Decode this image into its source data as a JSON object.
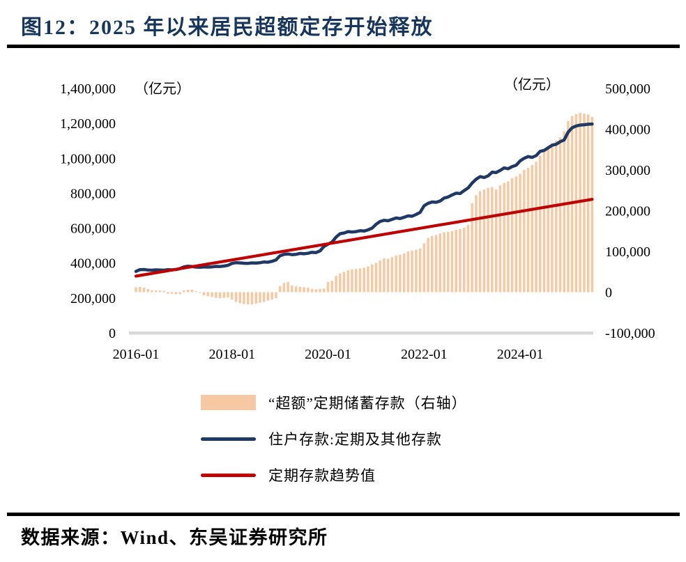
{
  "title": "图12：2025 年以来居民超额定存开始释放",
  "footer": {
    "source_text": "数据来源：Wind、东吴证券研究所"
  },
  "colors": {
    "title": "#17365D",
    "bar": "#F6C9A2",
    "deposit_line": "#1F3864",
    "trend_line": "#C00000",
    "axis_line": "#D9D9D9",
    "rule": "#000000"
  },
  "legend": {
    "items": [
      {
        "label": "“超额”定期储蓄存款（右轴）",
        "swatch": "bar"
      },
      {
        "label": "住户存款:定期及其他存款",
        "swatch": "line-navy"
      },
      {
        "label": "定期存款趋势值",
        "swatch": "line-red"
      }
    ]
  },
  "chart_data": {
    "type": "combo-bar-line",
    "title": "图12：2025 年以来居民超额定存开始释放",
    "frequency": "monthly",
    "x_start": "2016-01",
    "x_end": "2025-07",
    "unit_left": "（亿元）",
    "unit_right": "（亿元）",
    "grid": "off",
    "legend_position": "bottom",
    "x_ticks": [
      "2016-01",
      "2018-01",
      "2020-01",
      "2022-01",
      "2024-01"
    ],
    "left_axis": {
      "min": 0,
      "max": 1400000,
      "ticks": [
        "1,400,000",
        "1,200,000",
        "1,000,000",
        "800,000",
        "600,000",
        "400,000",
        "200,000",
        "0"
      ]
    },
    "right_axis": {
      "min": -100000,
      "max": 500000,
      "ticks": [
        "500,000",
        "400,000",
        "300,000",
        "200,000",
        "100,000",
        "0",
        "-100,000"
      ]
    },
    "series": [
      {
        "name": "“超额”定期储蓄存款（右轴）",
        "type": "bar",
        "axis": "right",
        "color": "#F6C9A2",
        "values": [
          12000,
          13000,
          11000,
          8000,
          5000,
          4000,
          4000,
          3000,
          -4000,
          -4000,
          -5000,
          -5000,
          4000,
          6000,
          6000,
          2000,
          -2000,
          -8000,
          -10000,
          -12000,
          -14000,
          -15000,
          -14000,
          -13000,
          -18000,
          -24000,
          -27000,
          -29000,
          -30000,
          -30000,
          -28000,
          -26000,
          -24000,
          -21000,
          -18000,
          -15000,
          15000,
          22000,
          25000,
          16000,
          14000,
          13000,
          12000,
          11000,
          8000,
          7000,
          8000,
          9000,
          25000,
          28000,
          40000,
          46000,
          50000,
          54000,
          56000,
          57000,
          58000,
          60000,
          63000,
          68000,
          72000,
          78000,
          83000,
          82000,
          86000,
          90000,
          92000,
          95000,
          100000,
          102000,
          104000,
          107000,
          120000,
          133000,
          138000,
          140000,
          144000,
          147000,
          148000,
          150000,
          153000,
          155000,
          158000,
          165000,
          218000,
          238000,
          248000,
          252000,
          256000,
          258000,
          252000,
          262000,
          268000,
          272000,
          280000,
          284000,
          290000,
          300000,
          305000,
          312000,
          320000,
          335000,
          345000,
          358000,
          365000,
          372000,
          380000,
          395000,
          420000,
          432000,
          437000,
          440000,
          438000,
          436000,
          430000
        ]
      },
      {
        "name": "住户存款:定期及其他存款",
        "type": "line",
        "axis": "left",
        "color": "#1F3864",
        "values": [
          352000,
          362000,
          363000,
          360000,
          359000,
          361000,
          360000,
          359000,
          362000,
          361000,
          363000,
          368000,
          378000,
          382000,
          380000,
          377000,
          376000,
          378000,
          377000,
          378000,
          381000,
          380000,
          383000,
          387000,
          398000,
          402000,
          401000,
          399000,
          398000,
          401000,
          400000,
          402000,
          406000,
          405000,
          410000,
          418000,
          442000,
          450000,
          452000,
          448000,
          450000,
          455000,
          453000,
          456000,
          462000,
          460000,
          470000,
          495000,
          508000,
          520000,
          548000,
          568000,
          572000,
          580000,
          578000,
          580000,
          585000,
          583000,
          590000,
          600000,
          622000,
          638000,
          645000,
          642000,
          650000,
          658000,
          655000,
          662000,
          670000,
          668000,
          678000,
          690000,
          728000,
          742000,
          750000,
          748000,
          755000,
          772000,
          778000,
          790000,
          800000,
          798000,
          815000,
          830000,
          858000,
          880000,
          895000,
          890000,
          900000,
          920000,
          918000,
          930000,
          945000,
          940000,
          952000,
          960000,
          985000,
          1000000,
          1010000,
          1005000,
          1015000,
          1040000,
          1045000,
          1060000,
          1075000,
          1080000,
          1095000,
          1105000,
          1150000,
          1175000,
          1185000,
          1190000,
          1192000,
          1195000,
          1196000
        ]
      },
      {
        "name": "定期存款趋势值",
        "type": "line",
        "axis": "left",
        "color": "#C00000",
        "trend_start": 325000,
        "trend_end": 765000
      }
    ]
  }
}
